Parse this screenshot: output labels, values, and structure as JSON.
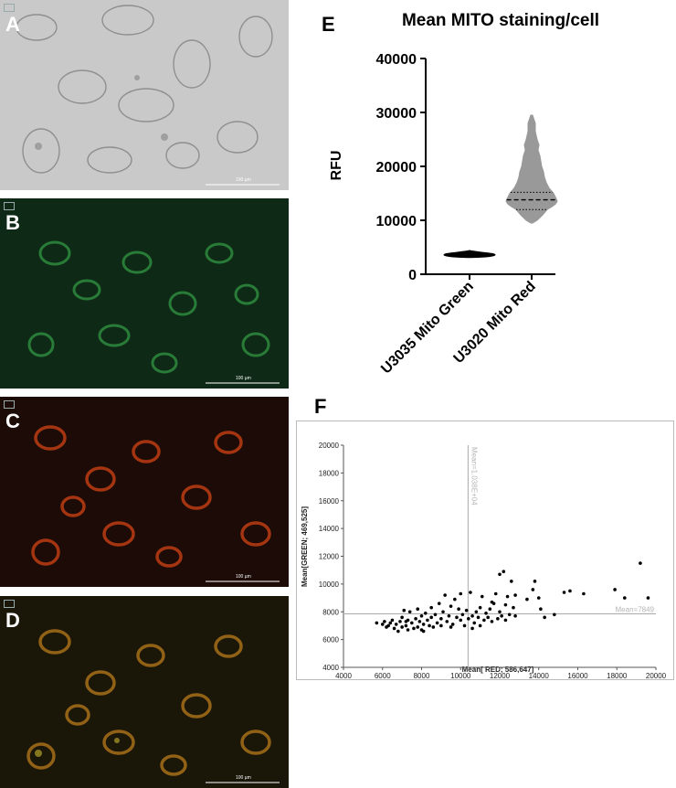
{
  "panels": [
    {
      "label": "A",
      "type": "brightfield",
      "scale": "100 µm"
    },
    {
      "label": "B",
      "type": "green",
      "scale": "100 µm"
    },
    {
      "label": "C",
      "type": "red",
      "scale": "100 µm"
    },
    {
      "label": "D",
      "type": "merge",
      "scale": "100 µm"
    }
  ],
  "panel_e_label": "E",
  "panel_f_label": "F",
  "chart_data": [
    {
      "type": "violin",
      "title": "Mean MITO staining/cell",
      "ylabel": "RFU",
      "xlabel": "",
      "ylim": [
        0,
        40000
      ],
      "yticks": [
        "0",
        "10000",
        "20000",
        "30000",
        "40000"
      ],
      "categories": [
        "U3035 Mito Green",
        "U3020 Mito Red"
      ],
      "series": [
        {
          "name": "U3035 Mito Green",
          "color": "#000000",
          "min": 3100,
          "q1": 3400,
          "median": 3600,
          "q3": 3800,
          "max": 4400
        },
        {
          "name": "U3020 Mito Red",
          "color": "#999999",
          "min": 9500,
          "q1": 12000,
          "median": 13800,
          "q3": 15200,
          "max": 29500
        }
      ]
    },
    {
      "type": "scatter",
      "xlabel": "Mean[ RED; 586,647]",
      "ylabel": "Mean[GREEN; 469,525]",
      "xlim": [
        4000,
        20000
      ],
      "ylim": [
        4000,
        20000
      ],
      "xticks": [
        "4000",
        "6000",
        "8000",
        "10000",
        "12000",
        "14000",
        "16000",
        "18000",
        "20000"
      ],
      "yticks": [
        "4000",
        "6000",
        "8000",
        "10000",
        "12000",
        "14000",
        "16000",
        "18000",
        "20000"
      ],
      "vline": {
        "x": 10380,
        "label": "Mean=1.038E+04"
      },
      "hline": {
        "y": 7849,
        "label": "Mean=7849"
      },
      "points": [
        [
          5700,
          7200
        ],
        [
          6000,
          7100
        ],
        [
          6100,
          7300
        ],
        [
          6300,
          7000
        ],
        [
          6400,
          7200
        ],
        [
          6500,
          7400
        ],
        [
          6600,
          6800
        ],
        [
          6700,
          7100
        ],
        [
          6800,
          6600
        ],
        [
          6900,
          7300
        ],
        [
          7000,
          7600
        ],
        [
          7000,
          6900
        ],
        [
          7100,
          8100
        ],
        [
          7200,
          7000
        ],
        [
          7300,
          7400
        ],
        [
          7300,
          6700
        ],
        [
          7400,
          8000
        ],
        [
          7500,
          7200
        ],
        [
          7600,
          6800
        ],
        [
          7700,
          7500
        ],
        [
          7800,
          8200
        ],
        [
          7800,
          6900
        ],
        [
          7900,
          7300
        ],
        [
          8000,
          7700
        ],
        [
          8000,
          6700
        ],
        [
          8100,
          7100
        ],
        [
          8200,
          7900
        ],
        [
          8300,
          7400
        ],
        [
          8400,
          7000
        ],
        [
          8500,
          8300
        ],
        [
          8500,
          7600
        ],
        [
          8600,
          6900
        ],
        [
          8700,
          7800
        ],
        [
          8800,
          7200
        ],
        [
          8900,
          8600
        ],
        [
          9000,
          7500
        ],
        [
          9000,
          7000
        ],
        [
          9100,
          8000
        ],
        [
          9200,
          9200
        ],
        [
          9300,
          7300
        ],
        [
          9400,
          7700
        ],
        [
          9500,
          8400
        ],
        [
          9600,
          7100
        ],
        [
          9700,
          8900
        ],
        [
          9800,
          7600
        ],
        [
          9900,
          8200
        ],
        [
          10000,
          7400
        ],
        [
          10000,
          9300
        ],
        [
          10100,
          7800
        ],
        [
          10200,
          7000
        ],
        [
          10300,
          8100
        ],
        [
          10400,
          7500
        ],
        [
          10500,
          9400
        ],
        [
          10600,
          7700
        ],
        [
          10700,
          7200
        ],
        [
          10800,
          8000
        ],
        [
          10900,
          7600
        ],
        [
          11000,
          8300
        ],
        [
          11000,
          7000
        ],
        [
          11100,
          9100
        ],
        [
          11200,
          7400
        ],
        [
          11300,
          7900
        ],
        [
          11400,
          7600
        ],
        [
          11500,
          8200
        ],
        [
          11600,
          7300
        ],
        [
          11700,
          8600
        ],
        [
          11800,
          9300
        ],
        [
          11900,
          7500
        ],
        [
          12000,
          10700
        ],
        [
          12000,
          8000
        ],
        [
          12100,
          7700
        ],
        [
          12200,
          10900
        ],
        [
          12300,
          8500
        ],
        [
          12300,
          7400
        ],
        [
          12400,
          9100
        ],
        [
          12500,
          7800
        ],
        [
          12600,
          10200
        ],
        [
          12700,
          8300
        ],
        [
          12800,
          9200
        ],
        [
          13700,
          9600
        ],
        [
          13800,
          10200
        ],
        [
          14000,
          9000
        ],
        [
          14100,
          8200
        ],
        [
          14300,
          7600
        ],
        [
          14800,
          7800
        ],
        [
          15300,
          9400
        ],
        [
          15600,
          9500
        ],
        [
          16300,
          9300
        ],
        [
          17900,
          9600
        ],
        [
          18400,
          9000
        ],
        [
          19200,
          11500
        ],
        [
          19600,
          9000
        ],
        [
          8100,
          6600
        ],
        [
          9500,
          6900
        ],
        [
          10600,
          6800
        ],
        [
          7200,
          7300
        ],
        [
          6200,
          6900
        ],
        [
          11600,
          8700
        ],
        [
          12800,
          7700
        ],
        [
          13400,
          8900
        ]
      ]
    }
  ]
}
